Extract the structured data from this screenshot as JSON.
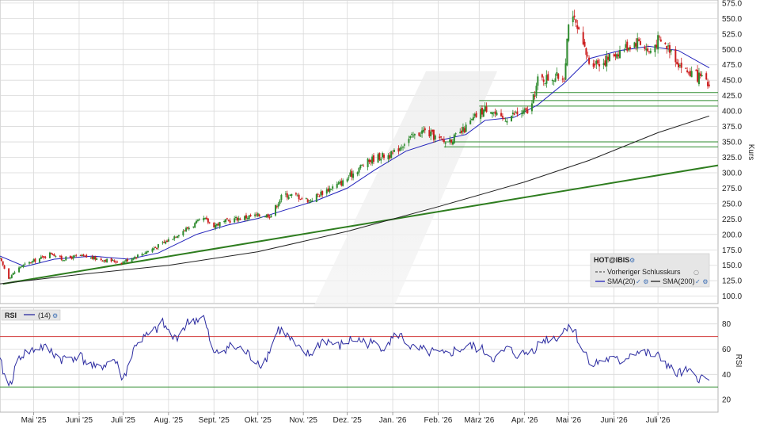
{
  "chart_data": [
    {
      "type": "candlestick",
      "ylabel": "Kurs",
      "ylim": [
        88,
        580
      ],
      "yticks": [
        100,
        125,
        150,
        175,
        200,
        225,
        250,
        275,
        300,
        325,
        350,
        375,
        400,
        425,
        450,
        475,
        500,
        525,
        550,
        575
      ],
      "ytick_labels": [
        "100.0",
        "125.0",
        "150.0",
        "175.0",
        "200.0",
        "225.0",
        "250.0",
        "275.0",
        "300.0",
        "325.0",
        "350.0",
        "375.0",
        "400.0",
        "425.0",
        "450.0",
        "475.0",
        "500.0",
        "525.0",
        "550.0",
        "575.0"
      ],
      "x_range": [
        "2025-04-08",
        "2026-08-11"
      ],
      "month_ticks": [
        {
          "date": "2025-05-01",
          "label": "Mai '25"
        },
        {
          "date": "2025-06-01",
          "label": "Juni '25"
        },
        {
          "date": "2025-07-01",
          "label": "Juli '25"
        },
        {
          "date": "2025-08-01",
          "label": "Aug. '25"
        },
        {
          "date": "2025-09-01",
          "label": "Sept. '25"
        },
        {
          "date": "2025-10-01",
          "label": "Okt. '25"
        },
        {
          "date": "2025-11-01",
          "label": "Nov. '25"
        },
        {
          "date": "2025-12-01",
          "label": "Dez. '25"
        },
        {
          "date": "2026-01-01",
          "label": "Jan. '26"
        },
        {
          "date": "2026-02-01",
          "label": "Feb. '26"
        },
        {
          "date": "2026-03-01",
          "label": "März '26"
        },
        {
          "date": "2026-04-01",
          "label": "Apr. '26"
        },
        {
          "date": "2026-05-01",
          "label": "Mai '26"
        },
        {
          "date": "2026-06-01",
          "label": "Juni '26"
        },
        {
          "date": "2026-07-01",
          "label": "Juli '26"
        }
      ],
      "close_path": [
        [
          "2025-04-08",
          160
        ],
        [
          "2025-04-14",
          130
        ],
        [
          "2025-04-22",
          148
        ],
        [
          "2025-05-06",
          162
        ],
        [
          "2025-05-13",
          170
        ],
        [
          "2025-05-20",
          160
        ],
        [
          "2025-06-01",
          165
        ],
        [
          "2025-06-15",
          160
        ],
        [
          "2025-06-30",
          155
        ],
        [
          "2025-07-15",
          170
        ],
        [
          "2025-07-28",
          185
        ],
        [
          "2025-08-10",
          205
        ],
        [
          "2025-08-25",
          225
        ],
        [
          "2025-09-01",
          215
        ],
        [
          "2025-09-15",
          225
        ],
        [
          "2025-09-28",
          230
        ],
        [
          "2025-10-10",
          232
        ],
        [
          "2025-10-18",
          265
        ],
        [
          "2025-10-28",
          262
        ],
        [
          "2025-11-05",
          255
        ],
        [
          "2025-11-15",
          270
        ],
        [
          "2025-11-28",
          285
        ],
        [
          "2025-12-10",
          310
        ],
        [
          "2025-12-20",
          325
        ],
        [
          "2026-01-01",
          330
        ],
        [
          "2026-01-10",
          352
        ],
        [
          "2026-01-22",
          368
        ],
        [
          "2026-02-05",
          350
        ],
        [
          "2026-02-15",
          360
        ],
        [
          "2026-02-28",
          395
        ],
        [
          "2026-03-08",
          408
        ],
        [
          "2026-03-15",
          385
        ],
        [
          "2026-03-25",
          395
        ],
        [
          "2026-04-05",
          400
        ],
        [
          "2026-04-10",
          450
        ],
        [
          "2026-04-20",
          455
        ],
        [
          "2026-04-28",
          455
        ],
        [
          "2026-05-01",
          548
        ],
        [
          "2026-05-05",
          545
        ],
        [
          "2026-05-10",
          510
        ],
        [
          "2026-05-15",
          480
        ],
        [
          "2026-05-25",
          480
        ],
        [
          "2026-06-01",
          492
        ],
        [
          "2026-06-10",
          505
        ],
        [
          "2026-06-18",
          515
        ],
        [
          "2026-06-25",
          495
        ],
        [
          "2026-07-01",
          515
        ],
        [
          "2026-07-10",
          500
        ],
        [
          "2026-07-15",
          478
        ],
        [
          "2026-07-20",
          465
        ],
        [
          "2026-07-25",
          460
        ],
        [
          "2026-08-01",
          450
        ],
        [
          "2026-08-05",
          440
        ]
      ],
      "sma20_path": [
        [
          "2025-04-08",
          165
        ],
        [
          "2025-04-25",
          148
        ],
        [
          "2025-05-15",
          160
        ],
        [
          "2025-06-10",
          165
        ],
        [
          "2025-07-05",
          160
        ],
        [
          "2025-07-25",
          170
        ],
        [
          "2025-08-20",
          200
        ],
        [
          "2025-09-10",
          215
        ],
        [
          "2025-10-01",
          226
        ],
        [
          "2025-10-20",
          240
        ],
        [
          "2025-11-10",
          255
        ],
        [
          "2025-12-01",
          275
        ],
        [
          "2025-12-20",
          305
        ],
        [
          "2026-01-10",
          335
        ],
        [
          "2026-02-01",
          352
        ],
        [
          "2026-02-20",
          362
        ],
        [
          "2026-03-05",
          385
        ],
        [
          "2026-03-25",
          390
        ],
        [
          "2026-04-10",
          410
        ],
        [
          "2026-04-28",
          445
        ],
        [
          "2026-05-15",
          485
        ],
        [
          "2026-06-05",
          498
        ],
        [
          "2026-06-25",
          505
        ],
        [
          "2026-07-15",
          498
        ],
        [
          "2026-08-05",
          470
        ]
      ],
      "sma200_path": [
        [
          "2025-04-08",
          120
        ],
        [
          "2025-06-01",
          135
        ],
        [
          "2025-08-01",
          150
        ],
        [
          "2025-10-01",
          172
        ],
        [
          "2025-12-01",
          205
        ],
        [
          "2026-02-01",
          245
        ],
        [
          "2026-04-01",
          285
        ],
        [
          "2026-05-15",
          320
        ],
        [
          "2026-07-01",
          365
        ],
        [
          "2026-08-05",
          392
        ]
      ],
      "trendline": {
        "from": [
          "2025-04-10",
          120
        ],
        "to": [
          "2026-08-11",
          312
        ]
      },
      "support_lines": [
        {
          "from": "2026-03-01",
          "to": "2026-08-11",
          "values": [
            417,
            408
          ]
        },
        {
          "from": "2026-04-05",
          "to": "2026-08-11",
          "values": [
            430
          ]
        },
        {
          "from": "2026-02-05",
          "to": "2026-08-11",
          "values": [
            350,
            342
          ]
        }
      ],
      "legend": {
        "symbol": "HOT@IBIS",
        "prev_close": "Vorheriger Schlusskurs",
        "sma20": "SMA(20)",
        "sma200": "SMA(200)"
      },
      "colors": {
        "up": "#2e8b2e",
        "down": "#cc1f1f",
        "sma20": "#2222bb",
        "sma200": "#222222",
        "trend": "#2e7d1f",
        "support": "#2e8b2e"
      }
    },
    {
      "type": "line",
      "title": "RSI",
      "series": [
        {
          "name": "(14)"
        }
      ],
      "ylim": [
        10,
        93
      ],
      "yticks": [
        20,
        40,
        60,
        80
      ],
      "overbought": 70,
      "oversold": 30,
      "rsi_path": [
        [
          "2025-04-08",
          50
        ],
        [
          "2025-04-14",
          30
        ],
        [
          "2025-04-22",
          55
        ],
        [
          "2025-05-06",
          62
        ],
        [
          "2025-05-13",
          58
        ],
        [
          "2025-05-20",
          52
        ],
        [
          "2025-06-01",
          55
        ],
        [
          "2025-06-12",
          44
        ],
        [
          "2025-06-25",
          52
        ],
        [
          "2025-07-01",
          36
        ],
        [
          "2025-07-10",
          65
        ],
        [
          "2025-07-20",
          72
        ],
        [
          "2025-07-28",
          80
        ],
        [
          "2025-08-05",
          68
        ],
        [
          "2025-08-15",
          82
        ],
        [
          "2025-08-25",
          85
        ],
        [
          "2025-09-01",
          55
        ],
        [
          "2025-09-10",
          62
        ],
        [
          "2025-09-20",
          60
        ],
        [
          "2025-09-28",
          52
        ],
        [
          "2025-10-05",
          48
        ],
        [
          "2025-10-15",
          76
        ],
        [
          "2025-10-20",
          72
        ],
        [
          "2025-10-28",
          60
        ],
        [
          "2025-11-05",
          55
        ],
        [
          "2025-11-15",
          68
        ],
        [
          "2025-11-25",
          62
        ],
        [
          "2025-12-05",
          68
        ],
        [
          "2025-12-15",
          65
        ],
        [
          "2025-12-25",
          62
        ],
        [
          "2026-01-05",
          72
        ],
        [
          "2026-01-15",
          60
        ],
        [
          "2026-01-25",
          58
        ],
        [
          "2026-02-05",
          55
        ],
        [
          "2026-02-15",
          60
        ],
        [
          "2026-02-25",
          62
        ],
        [
          "2026-03-05",
          58
        ],
        [
          "2026-03-12",
          52
        ],
        [
          "2026-03-20",
          60
        ],
        [
          "2026-03-28",
          55
        ],
        [
          "2026-04-05",
          58
        ],
        [
          "2026-04-15",
          68
        ],
        [
          "2026-04-25",
          70
        ],
        [
          "2026-05-01",
          80
        ],
        [
          "2026-05-05",
          75
        ],
        [
          "2026-05-10",
          60
        ],
        [
          "2026-05-18",
          48
        ],
        [
          "2026-05-28",
          52
        ],
        [
          "2026-06-05",
          50
        ],
        [
          "2026-06-15",
          58
        ],
        [
          "2026-06-25",
          56
        ],
        [
          "2026-07-05",
          52
        ],
        [
          "2026-07-12",
          40
        ],
        [
          "2026-07-20",
          42
        ],
        [
          "2026-07-28",
          38
        ],
        [
          "2026-08-05",
          34
        ]
      ],
      "colors": {
        "line": "#2a2aa0",
        "overbought": "#d23c3c",
        "oversold": "#2e8b2e"
      }
    }
  ]
}
